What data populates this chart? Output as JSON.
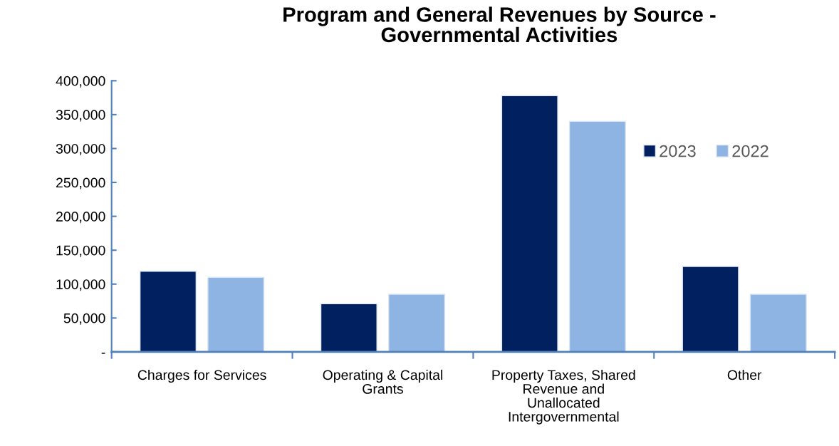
{
  "chart_data": {
    "type": "bar",
    "title": "Program and General Revenues by Source -\nGovernmental Activities",
    "categories": [
      "Charges for Services",
      "Operating & Capital\nGrants",
      "Property Taxes, Shared\nRevenue and\nUnallocated\nIntergovernmental",
      "Other"
    ],
    "series": [
      {
        "name": "2023",
        "color": "#012060",
        "values": [
          119000,
          71000,
          378000,
          126000
        ]
      },
      {
        "name": "2022",
        "color": "#8eb4e3",
        "values": [
          110000,
          85000,
          340000,
          85000
        ]
      }
    ],
    "ylim": [
      0,
      400000
    ],
    "yticks": [
      {
        "value": 0,
        "label": "-"
      },
      {
        "value": 50000,
        "label": "50,000"
      },
      {
        "value": 100000,
        "label": "100,000"
      },
      {
        "value": 150000,
        "label": "150,000"
      },
      {
        "value": 200000,
        "label": "200,000"
      },
      {
        "value": 250000,
        "label": "250,000"
      },
      {
        "value": 300000,
        "label": "300,000"
      },
      {
        "value": 350000,
        "label": "350,000"
      },
      {
        "value": 400000,
        "label": "400,000"
      }
    ],
    "grid": false,
    "legend": "top right"
  }
}
